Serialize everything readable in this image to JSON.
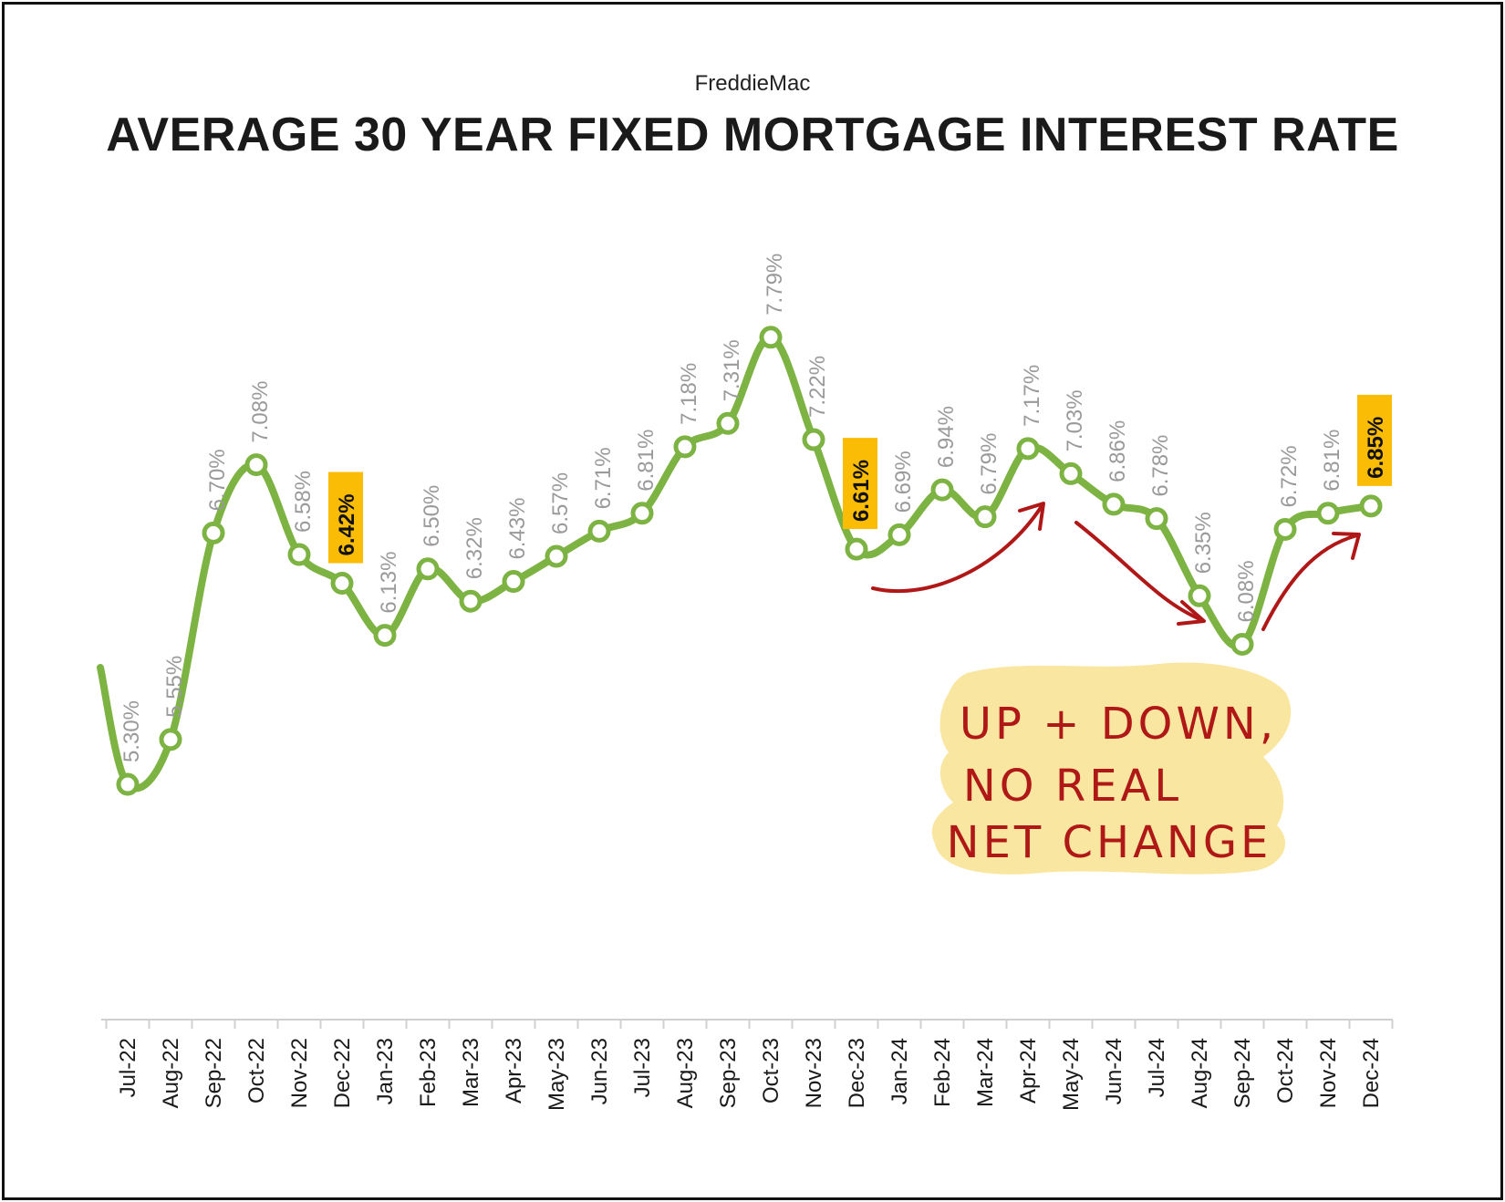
{
  "header": {
    "source": "FreddieMac",
    "title": "AVERAGE 30 YEAR FIXED MORTGAGE INTEREST RATE"
  },
  "annotation": {
    "lines": [
      "UP + DOWN,",
      "NO REAL",
      "NET CHANGE"
    ]
  },
  "colors": {
    "line": "#7cb342",
    "label": "#9a9a9a",
    "highlight": "#fbbc05",
    "arrow": "#b01818",
    "note_bg": "#f9e7a1"
  },
  "chart_data": {
    "type": "line",
    "title": "AVERAGE 30 YEAR FIXED MORTGAGE INTEREST RATE",
    "categories": [
      "Jul-22",
      "Aug-22",
      "Sep-22",
      "Oct-22",
      "Nov-22",
      "Dec-22",
      "Jan-23",
      "Feb-23",
      "Mar-23",
      "Apr-23",
      "May-23",
      "Jun-23",
      "Jul-23",
      "Aug-23",
      "Sep-23",
      "Oct-23",
      "Nov-23",
      "Dec-23",
      "Jan-24",
      "Feb-24",
      "Mar-24",
      "Apr-24",
      "May-24",
      "Jun-24",
      "Jul-24",
      "Aug-24",
      "Sep-24",
      "Oct-24",
      "Nov-24",
      "Dec-24"
    ],
    "series": [
      {
        "values": [
          5.3,
          5.55,
          6.7,
          7.08,
          6.58,
          6.42,
          6.13,
          6.5,
          6.32,
          6.43,
          6.57,
          6.71,
          6.81,
          7.18,
          7.31,
          7.79,
          7.22,
          6.61,
          6.69,
          6.94,
          6.79,
          7.17,
          7.03,
          6.86,
          6.78,
          6.35,
          6.08,
          6.72,
          6.81,
          6.85
        ],
        "labels": [
          "5.30%",
          "5.55%",
          "6.70%",
          "7.08%",
          "6.58%",
          "6.42%",
          "6.13%",
          "6.50%",
          "6.32%",
          "6.43%",
          "6.57%",
          "6.71%",
          "6.81%",
          "7.18%",
          "7.31%",
          "7.79%",
          "7.22%",
          "6.61%",
          "6.69%",
          "6.94%",
          "6.79%",
          "7.17%",
          "7.03%",
          "6.86%",
          "6.78%",
          "6.35%",
          "6.08%",
          "6.72%",
          "6.81%",
          "6.85%"
        ]
      }
    ],
    "highlighted": [
      "Dec-22",
      "Dec-23",
      "Dec-24"
    ],
    "ylim": [
      4.0,
      8.5
    ],
    "grid": false,
    "legend": "none"
  }
}
